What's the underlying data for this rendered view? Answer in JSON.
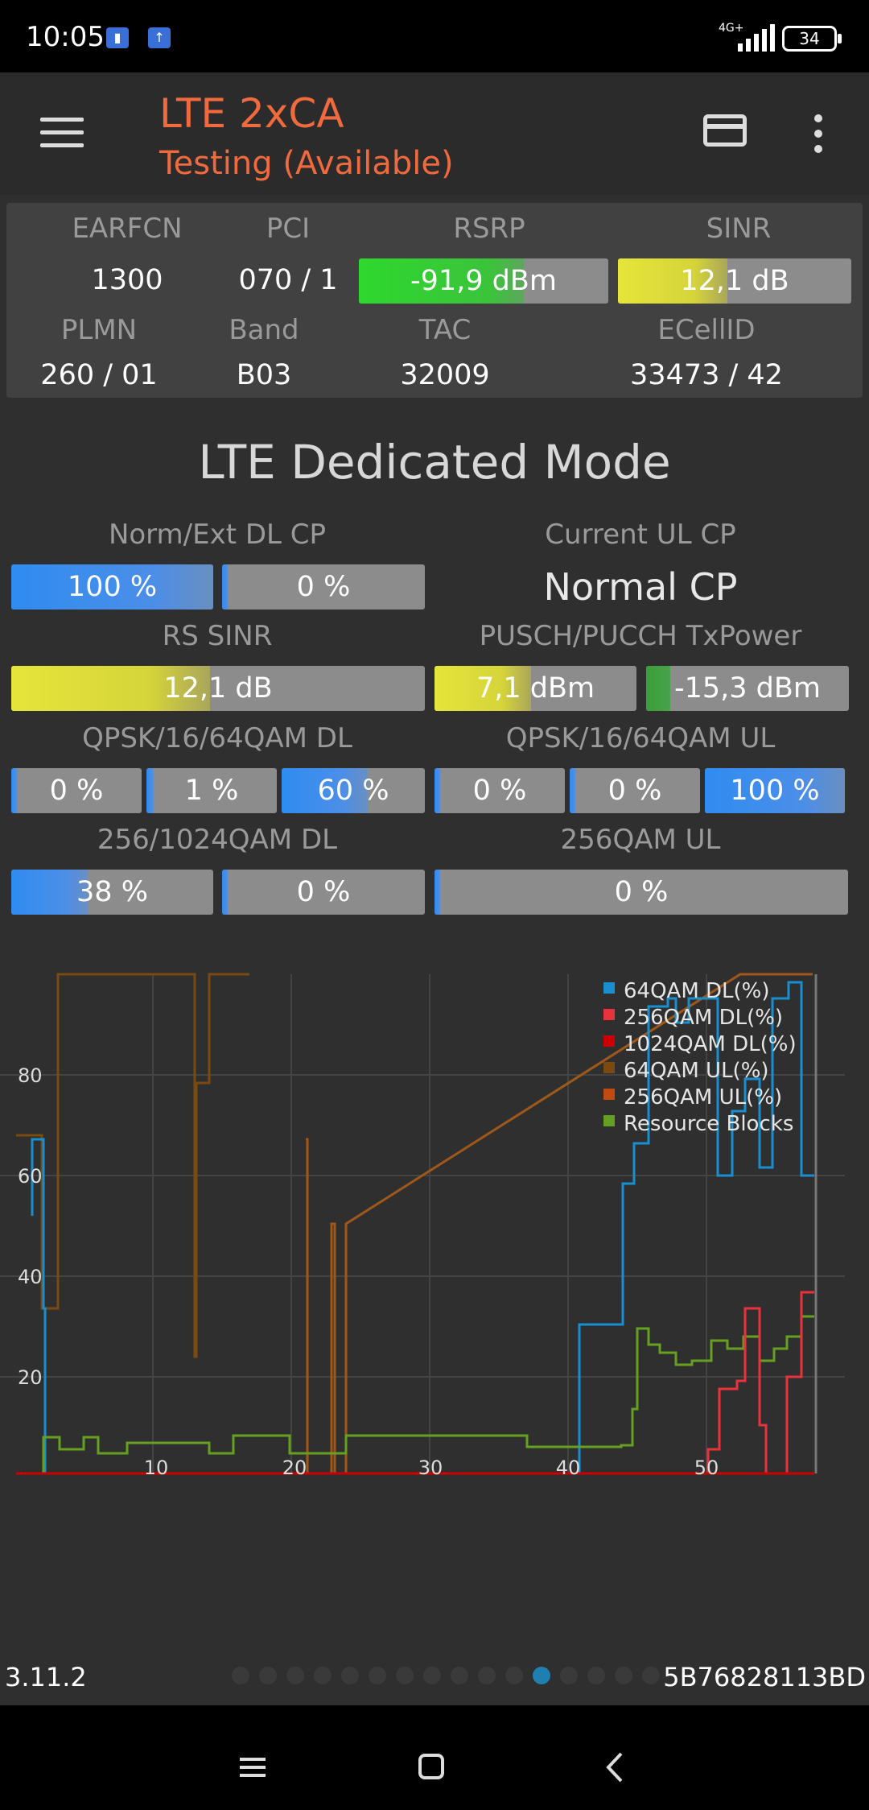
{
  "status_bar": {
    "time": "10:05",
    "network": "4G+",
    "battery": "34"
  },
  "appbar": {
    "title": "LTE 2xCA",
    "subtitle": "Testing (Available)"
  },
  "cell_info": {
    "earfcn_label": "EARFCN",
    "earfcn": "1300",
    "pci_label": "PCI",
    "pci": "070 / 1",
    "rsrp_label": "RSRP",
    "rsrp": "-91,9 dBm",
    "rsrp_level": 0.66,
    "sinr_label": "SINR",
    "sinr": "12,1 dB",
    "sinr_level": 0.47,
    "plmn_label": "PLMN",
    "plmn": "260 / 01",
    "band_label": "Band",
    "band": "B03",
    "tac_label": "TAC",
    "tac": "32009",
    "ecellid_label": "ECellID",
    "ecellid": "33473 / 42"
  },
  "mode_title": "LTE Dedicated Mode",
  "metrics": {
    "norm_ext_label": "Norm/Ext DL CP",
    "norm_val": "100 %",
    "ext_val": "0 %",
    "ul_cp_label": "Current UL CP",
    "ul_cp_val": "Normal CP",
    "rs_sinr_label": "RS SINR",
    "rs_sinr_val": "12,1 dB",
    "txpower_label": "PUSCH/PUCCH TxPower",
    "pusch_val": "7,1 dBm",
    "pucch_val": "-15,3 dBm",
    "dl_mod_label": "QPSK/16/64QAM DL",
    "dl_qpsk": "0 %",
    "dl_16": "1 %",
    "dl_64": "60 %",
    "ul_mod_label": "QPSK/16/64QAM UL",
    "ul_qpsk": "0 %",
    "ul_16": "0 %",
    "ul_64": "100 %",
    "dl_256_label": "256/1024QAM DL",
    "dl_256": "38 %",
    "dl_1024": "0 %",
    "ul_256_label": "256QAM UL",
    "ul_256": "0 %"
  },
  "chart_data": {
    "type": "line",
    "x_ticks": [
      "10",
      "20",
      "30",
      "40",
      "50"
    ],
    "y_ticks": [
      "20",
      "40",
      "60",
      "80"
    ],
    "legend": [
      "64QAM DL(%)",
      "256QAM DL(%)",
      "1024QAM DL(%)",
      "64QAM UL(%)",
      "256QAM UL(%)",
      "Resource Blocks"
    ],
    "colors": [
      "#1a8fd0",
      "#e8323c",
      "#cc0000",
      "#7a4a10",
      "#c04a10",
      "#66a020"
    ]
  },
  "footer": {
    "version": "3.11.2",
    "device_id": "5B76828113BD"
  }
}
